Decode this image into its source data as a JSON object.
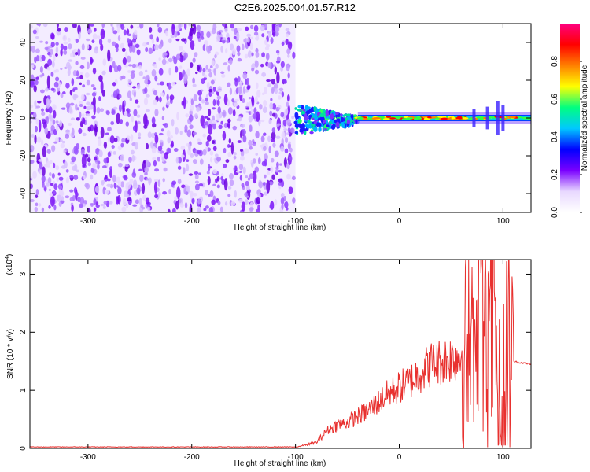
{
  "figure": {
    "title": "C2E6.2025.004.01.57.R12"
  },
  "chart_data": [
    {
      "type": "heatmap",
      "title": "C2E6.2025.004.01.57.R12",
      "xlabel": "Height of straight line (km)",
      "ylabel": "Frequency (Hz)",
      "xlim": [
        -356,
        127
      ],
      "ylim": [
        -50,
        50
      ],
      "xticks": [
        -300,
        -200,
        -100,
        0,
        100
      ],
      "yticks": [
        -40,
        -20,
        0,
        20,
        40
      ],
      "xtick_labels": [
        "-300",
        "-200",
        "-100",
        "0",
        "100"
      ],
      "ytick_labels": [
        "-40",
        "-20",
        "0",
        "20",
        "40"
      ],
      "noise_region_x": [
        -356,
        -100
      ],
      "signal_band_center_hz": 0,
      "colorbar": {
        "label": "Normalized spectral amplitude",
        "range": [
          0,
          1
        ],
        "ticks": [
          0.0,
          0.2,
          0.4,
          0.6,
          0.8
        ],
        "tick_labels": [
          "0.0",
          "0.2",
          "0.4",
          "0.6",
          "0.8"
        ],
        "colormap": [
          "#ffffff",
          "#e8d8ff",
          "#7a00ff",
          "#0000ff",
          "#00c8ff",
          "#00ff80",
          "#ffff00",
          "#ff8000",
          "#ff0000",
          "#ff0080"
        ]
      }
    },
    {
      "type": "line",
      "xlabel": "Height of straight line (km)",
      "ylabel": "SNR (10 * v/v)",
      "yscale_label": "(x10",
      "yscale_exp": "4",
      "xlim": [
        -356,
        127
      ],
      "ylim": [
        0,
        3.25
      ],
      "xticks": [
        -300,
        -200,
        -100,
        0,
        100
      ],
      "yticks": [
        0,
        1,
        2,
        3
      ],
      "xtick_labels": [
        "-300",
        "-200",
        "-100",
        "0",
        "100"
      ],
      "ytick_labels": [
        "0",
        "1",
        "2",
        "3"
      ],
      "color": "#e8312f",
      "series": [
        {
          "x": [
            -356,
            -300,
            -200,
            -100,
            -80,
            -70,
            -60,
            -50,
            -40,
            -30,
            -20,
            -10,
            0,
            10,
            20,
            30,
            40,
            50,
            60,
            70,
            75,
            80,
            85,
            90,
            95,
            100,
            105,
            110,
            115,
            120,
            127
          ],
          "values": [
            0.02,
            0.02,
            0.02,
            0.02,
            0.1,
            0.3,
            0.4,
            0.45,
            0.55,
            0.65,
            0.8,
            0.95,
            1.05,
            1.15,
            1.3,
            1.45,
            1.5,
            1.55,
            1.6,
            1.6,
            1.2,
            2.9,
            0.8,
            2.6,
            1.5,
            0.2,
            1.8,
            1.5,
            1.48,
            1.47,
            1.45
          ]
        }
      ]
    }
  ]
}
